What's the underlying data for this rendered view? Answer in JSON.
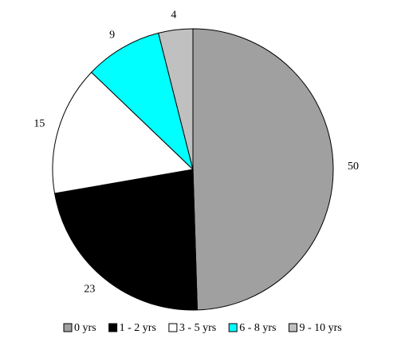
{
  "chart_data": {
    "type": "pie",
    "categories": [
      "0 yrs",
      "1 - 2 yrs",
      "3 - 5 yrs",
      "6 - 8 yrs",
      "9 - 10 yrs"
    ],
    "values": [
      50,
      23,
      15,
      9,
      4
    ],
    "colors": [
      "#a0a0a0",
      "#000000",
      "#ffffff",
      "#00ffff",
      "#c0c0c0"
    ],
    "legend": "bottom"
  }
}
